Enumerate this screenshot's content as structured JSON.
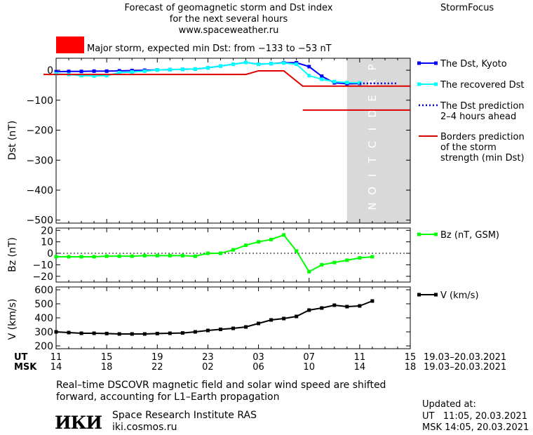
{
  "header": {
    "title_line1": "Forecast of geomagnetic storm and Dst index",
    "title_line2": "for the next several hours",
    "site": "www.spaceweather.ru",
    "brand": "StormFocus"
  },
  "alert": {
    "color": "#ff0000",
    "text": "Major storm, expected min Dst: from −133 to −53 nT"
  },
  "chart_data": [
    {
      "type": "line",
      "ylabel": "Dst (nT)",
      "ylim": [
        -510,
        40
      ],
      "yticks": [
        0,
        -100,
        -200,
        -300,
        -400,
        -500
      ],
      "ytick_labels": [
        "0",
        "−100",
        "−200",
        "−300",
        "−400",
        "−500"
      ],
      "prediction_label": "PREDICTION",
      "prediction_band_color": "#d9d9d9",
      "series": [
        {
          "name": "The Dst, Kyoto",
          "color": "#0000ff",
          "x": [
            11.0,
            12.0,
            13.0,
            14.0,
            15.0,
            16.0,
            17.0,
            18.0,
            19.0,
            20.0,
            21.0,
            22.0,
            23.0,
            24.0,
            25.0,
            26.0,
            27.0,
            28.0,
            29.0,
            30.0,
            31.0,
            32.0,
            33.0,
            34.0,
            35.0
          ],
          "y": [
            -5,
            -4,
            -4,
            -3,
            -3,
            -2,
            -1,
            0,
            1,
            2,
            3,
            4,
            8,
            14,
            20,
            26,
            20,
            22,
            25,
            25,
            12,
            -20,
            -42,
            -45,
            -44
          ]
        },
        {
          "name": "The recovered Dst",
          "color": "#00ffff",
          "x": [
            11.0,
            12.0,
            13.0,
            14.0,
            15.0,
            16.0,
            17.0,
            18.0,
            19.0,
            20.0,
            21.0,
            22.0,
            23.0,
            24.0,
            25.0,
            26.0,
            27.0,
            28.0,
            29.0,
            30.0,
            31.0,
            32.0,
            33.0,
            34.0,
            35.0
          ],
          "y": [
            -12,
            -14,
            -18,
            -19,
            -18,
            -8,
            -6,
            -3,
            1,
            2,
            3,
            4,
            8,
            14,
            20,
            26,
            20,
            22,
            24,
            20,
            -18,
            -30,
            -38,
            -41,
            -42
          ]
        },
        {
          "name": "The Dst prediction\n2–4 hours ahead",
          "color": "#0000cc",
          "dotted": true,
          "x": [
            35.0,
            36.0,
            37.0,
            38.0
          ],
          "y": [
            -44,
            -44,
            -44,
            -44
          ]
        },
        {
          "name": "Borders prediction\nof the storm\nstrength (min Dst)",
          "color": "#dd0000",
          "border_upper": {
            "x": [
              10.0,
              26.0,
              27.0,
              29.0,
              30.5,
              39.0
            ],
            "y": [
              -14,
              -14,
              -2,
              -2,
              -53,
              -53
            ]
          },
          "border_lower": {
            "x": [
              30.5,
              39.0
            ],
            "y": [
              -133,
              -133
            ]
          }
        }
      ]
    },
    {
      "type": "line",
      "ylabel": "Bz (nT)",
      "ylim": [
        -25,
        22
      ],
      "yticks": [
        20,
        10,
        0,
        -10,
        -20
      ],
      "ytick_labels": [
        "20",
        "10",
        "0",
        "−10",
        "−20"
      ],
      "series": [
        {
          "name": "Bz (nT, GSM)",
          "color": "#00ff00",
          "x": [
            11.0,
            12.0,
            13.0,
            14.0,
            15.0,
            16.0,
            17.0,
            18.0,
            19.0,
            20.0,
            21.0,
            22.0,
            23.0,
            24.0,
            25.0,
            26.0,
            27.0,
            28.0,
            29.0,
            30.0,
            31.0,
            32.0,
            33.0,
            34.0,
            35.0,
            36.0
          ],
          "y": [
            -3,
            -3,
            -3,
            -3,
            -2.5,
            -2.5,
            -2.5,
            -2,
            -2,
            -2,
            -2,
            -2.5,
            0,
            0,
            3,
            7,
            10,
            12,
            16,
            2,
            -16,
            -10,
            -8,
            -6,
            -4,
            -3
          ]
        }
      ]
    },
    {
      "type": "line",
      "ylabel": "V (km/s)",
      "ylim": [
        180,
        620
      ],
      "yticks": [
        600,
        500,
        400,
        300,
        200
      ],
      "ytick_labels": [
        "600",
        "500",
        "400",
        "300",
        "200"
      ],
      "series": [
        {
          "name": "V (km/s)",
          "color": "#000000",
          "x": [
            11.0,
            12.0,
            13.0,
            14.0,
            15.0,
            16.0,
            17.0,
            18.0,
            19.0,
            20.0,
            21.0,
            22.0,
            23.0,
            24.0,
            25.0,
            26.0,
            27.0,
            28.0,
            29.0,
            30.0,
            31.0,
            32.0,
            33.0,
            34.0,
            35.0,
            36.0
          ],
          "y": [
            300,
            295,
            290,
            290,
            288,
            285,
            285,
            285,
            288,
            290,
            292,
            300,
            310,
            318,
            325,
            335,
            360,
            385,
            395,
            410,
            455,
            470,
            490,
            480,
            485,
            520
          ]
        }
      ]
    }
  ],
  "x_axis": {
    "ut_label": "UT",
    "msk_label": "MSK",
    "ut_ticks": [
      "11",
      "15",
      "19",
      "23",
      "03",
      "07",
      "11",
      "15"
    ],
    "msk_ticks": [
      "14",
      "18",
      "22",
      "02",
      "06",
      "10",
      "14",
      "18"
    ],
    "ut_range": "19.03–20.03.2021",
    "msk_range": "19.03–20.03.2021",
    "xlim": [
      11.0,
      39.0
    ]
  },
  "footer": {
    "note_line1": "Real–time DSCOVR magnetic field and solar wind speed are shifted",
    "note_line2": "forward, accounting for L1–Earth propagation",
    "logo_text": "ИКИ",
    "institute": "Space Research Institute RAS",
    "url": "iki.cosmos.ru",
    "updated_label": "Updated at:",
    "updated_ut": "UT   11:05, 20.03.2021",
    "updated_msk": "MSK 14:05, 20.03.2021"
  }
}
